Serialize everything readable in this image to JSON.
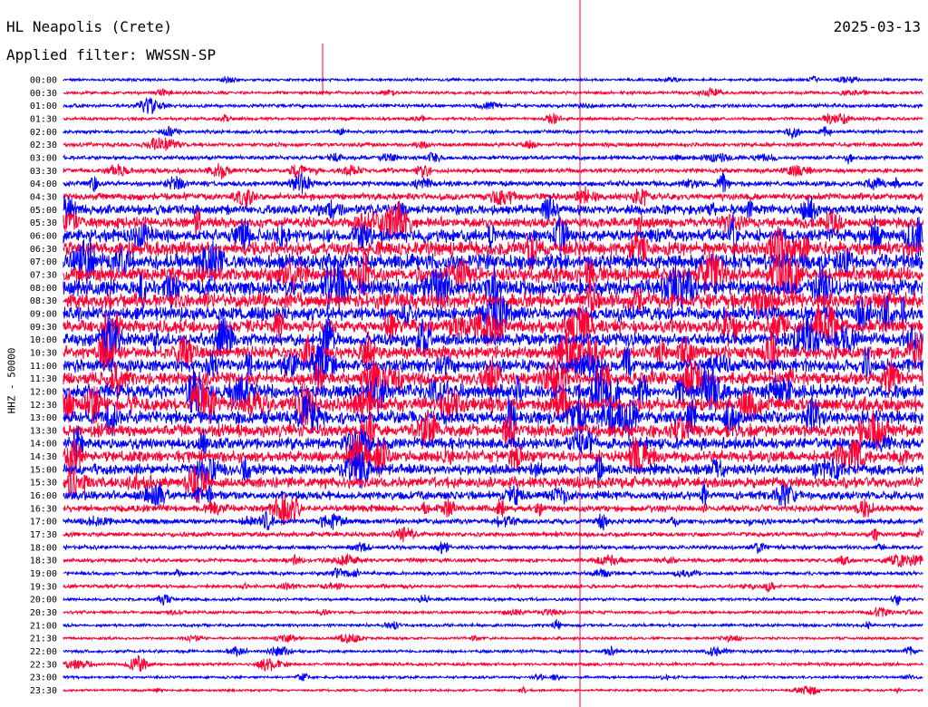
{
  "header": {
    "station": "HL Neapolis (Crete)",
    "date": "2025-03-13",
    "filter": "Applied filter: WWSSN-SP"
  },
  "chart_data": {
    "type": "line",
    "title": "HL Neapolis (Crete)",
    "subtitle": "Applied filter: WWSSN-SP",
    "date": "2025-03-13",
    "ylabel": "HHZ - 50000",
    "xlabel": "",
    "row_labels": [
      "00:00",
      "00:30",
      "01:00",
      "01:30",
      "02:00",
      "02:30",
      "03:00",
      "03:30",
      "04:00",
      "04:30",
      "05:00",
      "05:30",
      "06:00",
      "06:30",
      "07:00",
      "07:30",
      "08:00",
      "08:30",
      "09:00",
      "09:30",
      "10:00",
      "10:30",
      "11:00",
      "11:30",
      "12:00",
      "12:30",
      "13:00",
      "13:30",
      "14:00",
      "14:30",
      "15:00",
      "15:30",
      "16:00",
      "16:30",
      "17:00",
      "17:30",
      "18:00",
      "18:30",
      "19:00",
      "19:30",
      "20:00",
      "20:30",
      "21:00",
      "21:30",
      "22:00",
      "22:30",
      "23:00",
      "23:30"
    ],
    "row_colors": [
      "#0000ff",
      "#ff0033"
    ],
    "noise_level": [
      0.25,
      0.3,
      0.35,
      0.3,
      0.35,
      0.4,
      0.4,
      0.45,
      0.5,
      0.6,
      0.75,
      0.8,
      0.9,
      0.95,
      1.0,
      1.0,
      1.0,
      1.0,
      0.95,
      0.9,
      0.9,
      0.9,
      0.9,
      0.9,
      0.95,
      0.95,
      0.9,
      0.9,
      0.85,
      0.85,
      0.8,
      0.8,
      0.7,
      0.6,
      0.5,
      0.45,
      0.4,
      0.4,
      0.35,
      0.35,
      0.3,
      0.3,
      0.3,
      0.25,
      0.3,
      0.3,
      0.25,
      0.2
    ],
    "grid": false,
    "colors": {
      "trace_a": "#0000ff",
      "trace_b": "#ff0033",
      "marker": "#ff0033"
    }
  }
}
